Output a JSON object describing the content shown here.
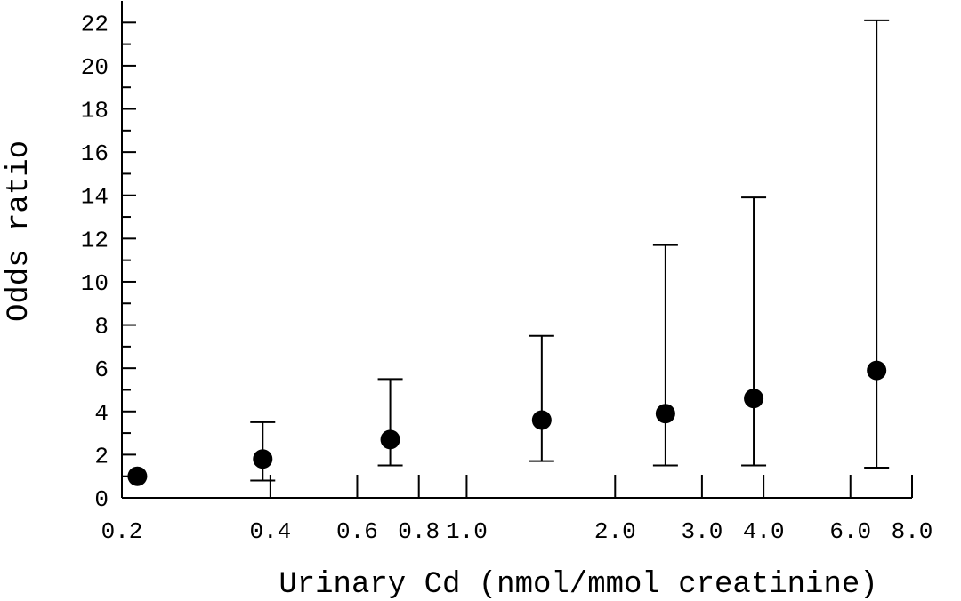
{
  "chart_data": {
    "type": "scatter",
    "xlabel": "Urinary Cd (nmol/mmol creatinine)",
    "ylabel": "Odds ratio",
    "xscale": "log",
    "xlim": [
      0.2,
      8.0
    ],
    "ylim": [
      0,
      23
    ],
    "xticks": [
      0.2,
      0.4,
      0.6,
      0.8,
      {
        "value": 1,
        "label": "1.0"
      },
      {
        "value": 2,
        "label": "2.0"
      },
      {
        "value": 3,
        "label": "3.0"
      },
      {
        "value": 4,
        "label": "4.0"
      },
      {
        "value": 6,
        "label": "6.0"
      },
      {
        "value": 8,
        "label": "8.0"
      }
    ],
    "yticks": [
      0,
      2,
      4,
      6,
      8,
      10,
      12,
      14,
      16,
      18,
      20,
      22
    ],
    "yminor_ticks": [
      1,
      3,
      5,
      7,
      9,
      11,
      13,
      15,
      17,
      19,
      21
    ],
    "series": [
      {
        "color": "#000000",
        "x": [
          0.215,
          0.386,
          0.7,
          1.42,
          2.53,
          3.82,
          6.78
        ],
        "values": [
          1.0,
          1.8,
          2.7,
          3.6,
          3.9,
          4.6,
          5.9
        ],
        "lower": [
          null,
          0.8,
          1.5,
          1.7,
          1.5,
          1.5,
          1.4
        ],
        "upper": [
          null,
          3.5,
          5.5,
          7.5,
          11.7,
          13.9,
          22.1
        ]
      }
    ]
  }
}
